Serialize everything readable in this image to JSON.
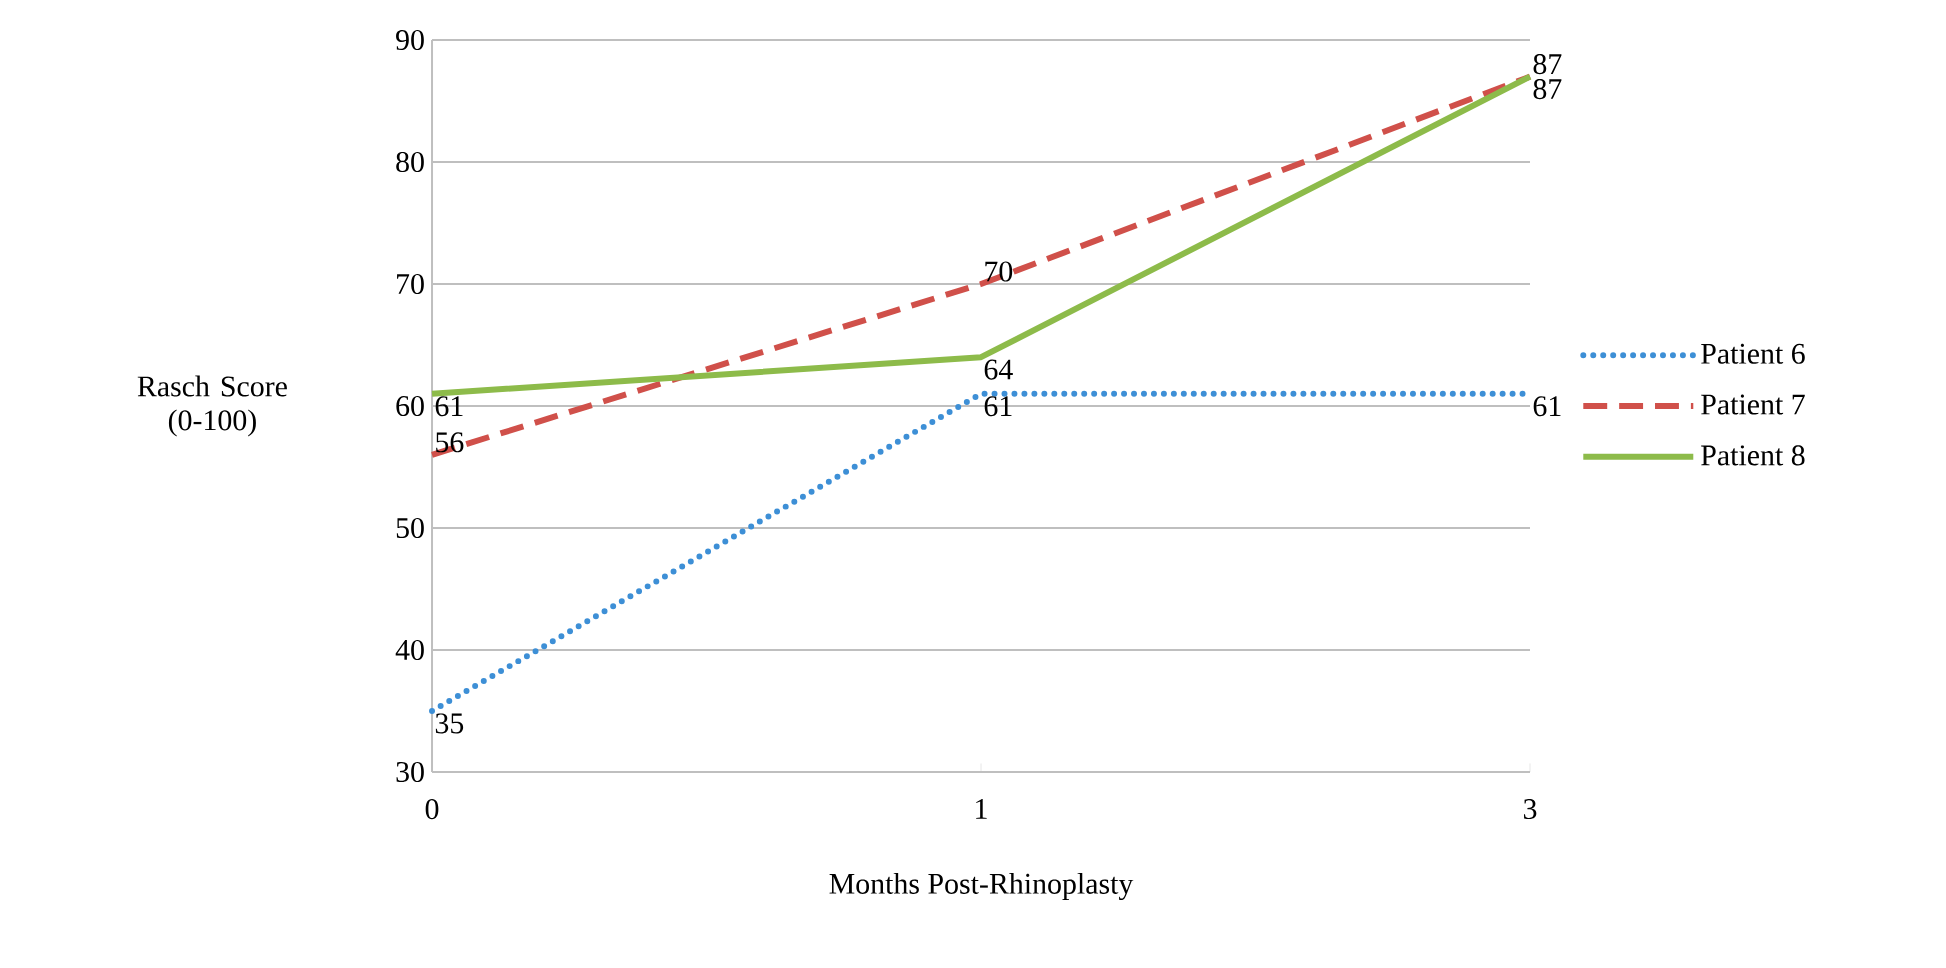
{
  "chart_data": {
    "type": "line",
    "xlabel": "Months Post-Rhinoplasty",
    "ylabel": "Rasch Score (0-100)",
    "categories": [
      "0",
      "1",
      "3"
    ],
    "series": [
      {
        "name": "Patient 6",
        "color": "#3d8fd6",
        "line_style": "dotted",
        "values": [
          35,
          61,
          61
        ]
      },
      {
        "name": "Patient 7",
        "color": "#d0504a",
        "line_style": "dashed",
        "values": [
          56,
          70,
          87
        ]
      },
      {
        "name": "Patient 8",
        "color": "#8dbb4a",
        "line_style": "solid",
        "values": [
          61,
          64,
          87
        ]
      }
    ],
    "ylim": [
      30,
      90
    ],
    "yticks": [
      30,
      40,
      50,
      60,
      70,
      80,
      90
    ],
    "grid": "y",
    "legend": "right",
    "marker": "none",
    "data_labels": true
  }
}
